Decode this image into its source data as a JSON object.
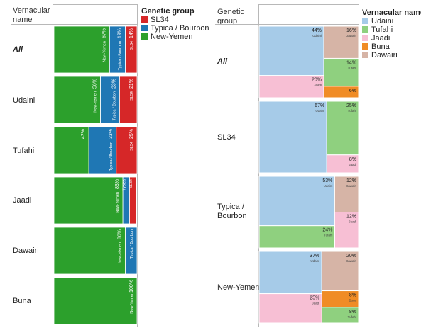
{
  "chart_data": [
    {
      "type": "mosaic",
      "row_header": "Vernacular\nname",
      "legend_title": "Genetic group",
      "legend": [
        {
          "name": "SL34",
          "color": "#d62728"
        },
        {
          "name": "Typica / Bourbon",
          "color": "#1f77b4"
        },
        {
          "name": "New-Yemen",
          "color": "#2ca02c"
        }
      ],
      "rows": [
        {
          "label": "All",
          "segments": [
            {
              "group": "New-Yemen",
              "value": 67,
              "text": "67%",
              "sub": "New-Yemen"
            },
            {
              "group": "Typica / Bourbon",
              "value": 19,
              "text": "19%",
              "sub": "Typica / Bourbon"
            },
            {
              "group": "SL34",
              "value": 14,
              "text": "14%",
              "sub": "SL34"
            }
          ]
        },
        {
          "label": "Udaini",
          "segments": [
            {
              "group": "New-Yemen",
              "value": 56,
              "text": "56%",
              "sub": "New-Yemen"
            },
            {
              "group": "Typica / Bourbon",
              "value": 23,
              "text": "23%",
              "sub": "Typica / Bourbon"
            },
            {
              "group": "SL34",
              "value": 21,
              "text": "21%",
              "sub": "SL34"
            }
          ]
        },
        {
          "label": "Tufahi",
          "segments": [
            {
              "group": "New-Yemen",
              "value": 42,
              "text": "42%",
              "sub": ""
            },
            {
              "group": "Typica / Bourbon",
              "value": 33,
              "text": "33%",
              "sub": "Typica / Bourbon"
            },
            {
              "group": "SL34",
              "value": 25,
              "text": "25%",
              "sub": "SL34"
            }
          ]
        },
        {
          "label": "Jaadi",
          "segments": [
            {
              "group": "New-Yemen",
              "value": 83,
              "text": "83%",
              "sub": "New-Yemen"
            },
            {
              "group": "Typica / Bourbon",
              "value": 8,
              "text": "",
              "sub": "Typica"
            },
            {
              "group": "SL34",
              "value": 8,
              "text": "",
              "sub": "SL34"
            }
          ]
        },
        {
          "label": "Dawairi",
          "segments": [
            {
              "group": "New-Yemen",
              "value": 86,
              "text": "86%",
              "sub": "New-Yemen"
            },
            {
              "group": "Typica / Bourbon",
              "value": 14,
              "text": "",
              "sub": "Typica / Bourbon"
            }
          ]
        },
        {
          "label": "Buna",
          "segments": [
            {
              "group": "New-Yemen",
              "value": 100,
              "text": "100%",
              "sub": "New-Yemen"
            }
          ]
        }
      ]
    },
    {
      "type": "treemap",
      "row_header": "Genetic\ngroup",
      "legend_title": "Vernacular name",
      "legend": [
        {
          "name": "Udaini",
          "color": "#a6cbe8"
        },
        {
          "name": "Tufahi",
          "color": "#8fd07f"
        },
        {
          "name": "Jaadi",
          "color": "#f7bfd4"
        },
        {
          "name": "Buna",
          "color": "#f08c26"
        },
        {
          "name": "Dawairi",
          "color": "#d6b4a6"
        }
      ],
      "rows": [
        {
          "label": "All",
          "cells": [
            {
              "name": "Udaini",
              "value": 44,
              "text": "44%",
              "sub": "Udaini"
            },
            {
              "name": "Dawairi",
              "value": 16,
              "text": "16%",
              "sub": "Dawairi"
            },
            {
              "name": "Tufahi",
              "value": 14,
              "text": "14%",
              "sub": "Tufahi"
            },
            {
              "name": "Buna",
              "value": 6,
              "text": "6%",
              "sub": ""
            },
            {
              "name": "Jaadi",
              "value": 20,
              "text": "20%",
              "sub": "Jaadi"
            }
          ]
        },
        {
          "label": "SL34",
          "cells": [
            {
              "name": "Udaini",
              "value": 67,
              "text": "67%",
              "sub": "Udaini"
            },
            {
              "name": "Tufahi",
              "value": 25,
              "text": "25%",
              "sub": "Tufahi"
            },
            {
              "name": "Jaadi",
              "value": 8,
              "text": "8%",
              "sub": "Jaadi"
            }
          ]
        },
        {
          "label": "Typica /\nBourbon",
          "cells": [
            {
              "name": "Udaini",
              "value": 53,
              "text": "53%",
              "sub": "Udaini"
            },
            {
              "name": "Dawairi",
              "value": 12,
              "text": "12%",
              "sub": "Dawairi"
            },
            {
              "name": "Jaadi",
              "value": 12,
              "text": "12%",
              "sub": "Jaadi"
            },
            {
              "name": "Tufahi",
              "value": 24,
              "text": "24%",
              "sub": "Tufahi"
            }
          ]
        },
        {
          "label": "New-Yemen",
          "cells": [
            {
              "name": "Udaini",
              "value": 37,
              "text": "37%",
              "sub": "Udaini"
            },
            {
              "name": "Dawairi",
              "value": 20,
              "text": "20%",
              "sub": "Dawairi"
            },
            {
              "name": "Buna",
              "value": 8,
              "text": "8%",
              "sub": "Buna"
            },
            {
              "name": "Tufahi",
              "value": 8,
              "text": "8%",
              "sub": "Tufahi"
            },
            {
              "name": "Jaadi",
              "value": 25,
              "text": "25%",
              "sub": "Jaadi"
            }
          ]
        }
      ]
    }
  ]
}
